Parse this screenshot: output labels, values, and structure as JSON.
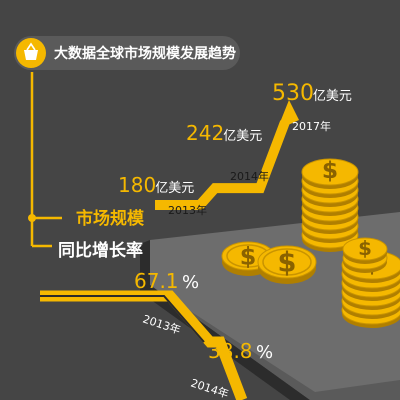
{
  "header": {
    "title": "大数据全球市场规模发展趋势",
    "icon": "basket-icon"
  },
  "colors": {
    "accent": "#f5b800",
    "background": "#454545",
    "text_light": "#ffffff",
    "text_dark": "#1a1a1a"
  },
  "chart_data": [
    {
      "type": "line",
      "title": "市场规模",
      "categories": [
        "2013年",
        "2014年",
        "2017年"
      ],
      "values": [
        180,
        242,
        530
      ],
      "unit": "亿美元",
      "value_labels": [
        "180",
        "242",
        "530"
      ]
    },
    {
      "type": "line",
      "title": "同比增长率",
      "categories": [
        "2013年",
        "2014年"
      ],
      "values": [
        67.1,
        38.8
      ],
      "unit": "%",
      "value_labels": [
        "67.1",
        "38.8"
      ]
    }
  ],
  "decor": {
    "coin_icon": "dollar-coin-icon"
  }
}
